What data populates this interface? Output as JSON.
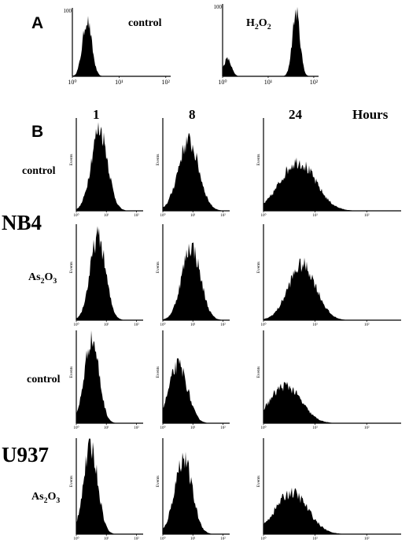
{
  "panel_a": {
    "letter": "A",
    "plots": [
      {
        "label": "control",
        "y_max_label": "100",
        "x_ticks": [
          "10⁰",
          "10¹",
          "10²"
        ]
      },
      {
        "label_main": "H",
        "label_sub1": "2",
        "label_mid": "O",
        "label_sub2": "2",
        "y_max_label": "100",
        "x_ticks": [
          "10⁰",
          "10¹",
          "10²"
        ]
      }
    ]
  },
  "panel_b": {
    "letter": "B",
    "time_headers": [
      "1",
      "8",
      "24"
    ],
    "hours_label": "Hours",
    "cell_lines": [
      "NB4",
      "U937"
    ],
    "row_labels": [
      "control",
      "As2O3",
      "control",
      "As2O3"
    ],
    "as2o3": {
      "main1": "As",
      "sub1": "2",
      "main2": "O",
      "sub2": "3"
    },
    "y_axis_label": "Events",
    "x_ticks": [
      "10⁰",
      "10¹",
      "10²"
    ]
  },
  "chart_data": [
    {
      "type": "histogram",
      "panel": "A",
      "name": "control",
      "x_scale": "log",
      "xlim": [
        1,
        1000
      ],
      "ylim": [
        0,
        100
      ],
      "peaks": [
        {
          "center_log": 0.45,
          "width": 0.14,
          "height": 0.85
        }
      ]
    },
    {
      "type": "histogram",
      "panel": "A",
      "name": "H2O2",
      "x_scale": "log",
      "xlim": [
        1,
        1000
      ],
      "ylim": [
        0,
        100
      ],
      "peaks": [
        {
          "center_log": 0.15,
          "width": 0.12,
          "height": 0.25
        },
        {
          "center_log": 2.3,
          "width": 0.12,
          "height": 0.92
        }
      ]
    },
    {
      "type": "histogram",
      "panel": "B",
      "cell_line": "NB4",
      "treatment": "control",
      "hours": [
        1,
        8,
        24
      ],
      "x_scale": "log",
      "peaks": [
        {
          "center_log": 0.45,
          "width": 0.16,
          "height": 0.92
        },
        {
          "center_log": 0.5,
          "width": 0.2,
          "height": 0.78
        },
        {
          "center_log": 0.55,
          "width": 0.28,
          "height": 0.55
        }
      ]
    },
    {
      "type": "histogram",
      "panel": "B",
      "cell_line": "NB4",
      "treatment": "As2O3",
      "hours": [
        1,
        8,
        24
      ],
      "x_scale": "log",
      "peaks": [
        {
          "center_log": 0.42,
          "width": 0.15,
          "height": 0.9
        },
        {
          "center_log": 0.55,
          "width": 0.18,
          "height": 0.8
        },
        {
          "center_log": 0.62,
          "width": 0.22,
          "height": 0.6
        }
      ]
    },
    {
      "type": "histogram",
      "panel": "B",
      "cell_line": "U937",
      "treatment": "control",
      "hours": [
        1,
        8,
        24
      ],
      "x_scale": "log",
      "peaks": [
        {
          "center_log": 0.3,
          "width": 0.14,
          "height": 0.95
        },
        {
          "center_log": 0.3,
          "width": 0.18,
          "height": 0.65
        },
        {
          "center_log": 0.35,
          "width": 0.25,
          "height": 0.42
        }
      ]
    },
    {
      "type": "histogram",
      "panel": "B",
      "cell_line": "U937",
      "treatment": "As2O3",
      "hours": [
        1,
        8,
        24
      ],
      "x_scale": "log",
      "peaks": [
        {
          "center_log": 0.28,
          "width": 0.14,
          "height": 0.95
        },
        {
          "center_log": 0.4,
          "width": 0.17,
          "height": 0.82
        },
        {
          "center_log": 0.45,
          "width": 0.26,
          "height": 0.45
        }
      ]
    }
  ]
}
